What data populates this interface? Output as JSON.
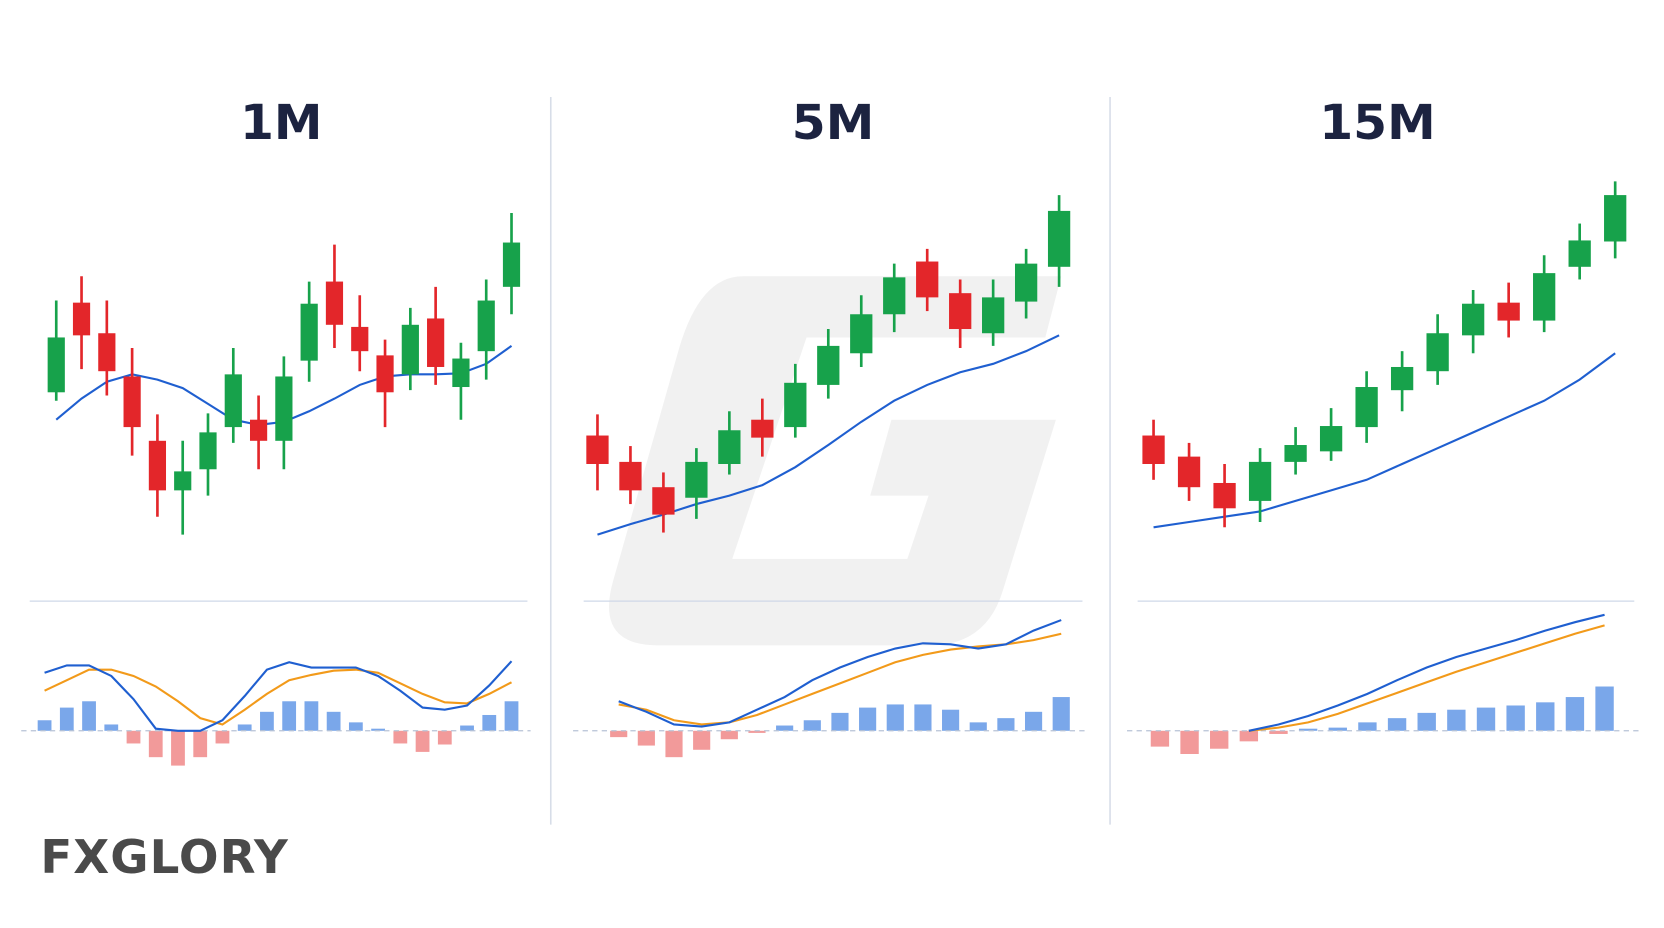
{
  "chart_data": [
    {
      "type": "candlestick",
      "title": "1M",
      "open": [
        148,
        233,
        204,
        163,
        102,
        55,
        75,
        115,
        122,
        102,
        178,
        253,
        210,
        183,
        165,
        218,
        153,
        187,
        248
      ],
      "close": [
        200,
        202,
        168,
        115,
        55,
        73,
        110,
        165,
        102,
        163,
        232,
        212,
        187,
        148,
        212,
        172,
        180,
        235,
        290
      ],
      "high": [
        235,
        258,
        235,
        190,
        127,
        102,
        128,
        190,
        145,
        182,
        253,
        288,
        240,
        198,
        228,
        248,
        195,
        255,
        318
      ],
      "low": [
        140,
        170,
        145,
        88,
        30,
        13,
        50,
        100,
        75,
        75,
        158,
        190,
        168,
        115,
        150,
        155,
        122,
        160,
        222
      ],
      "ylim": [
        0,
        350
      ],
      "up_color": "#17a24b",
      "down_color": "#e3262a",
      "moving_average": {
        "color": "#1f5fd0",
        "values": [
          122,
          142,
          158,
          165,
          160,
          152,
          137,
          122,
          117,
          120,
          130,
          142,
          155,
          163,
          165,
          165,
          166,
          175,
          192
        ]
      },
      "macd": {
        "ylim": [
          -50,
          125
        ],
        "positive_color": "#7aa7ea",
        "negative_color": "#f29a9a",
        "histogram": [
          10,
          22,
          28,
          6,
          -12,
          -25,
          -33,
          -25,
          -12,
          6,
          18,
          28,
          28,
          18,
          8,
          2,
          -12,
          -20,
          -13,
          5,
          15,
          28
        ],
        "macd_line": {
          "color": "#1f5fd0",
          "values": [
            55,
            62,
            62,
            52,
            30,
            2,
            0,
            0,
            10,
            33,
            58,
            65,
            60,
            60,
            60,
            52,
            38,
            22,
            20,
            24,
            43,
            66
          ]
        },
        "signal_line": {
          "color": "#f29a1a",
          "values": [
            38,
            48,
            58,
            58,
            52,
            42,
            28,
            12,
            6,
            20,
            35,
            48,
            53,
            57,
            58,
            55,
            45,
            35,
            27,
            26,
            35,
            46
          ]
        }
      }
    },
    {
      "type": "candlestick",
      "title": "5M",
      "open": [
        107,
        82,
        58,
        48,
        80,
        122,
        115,
        155,
        185,
        222,
        272,
        242,
        204,
        234,
        267
      ],
      "close": [
        80,
        55,
        32,
        82,
        112,
        105,
        157,
        192,
        222,
        257,
        238,
        208,
        238,
        270,
        320
      ],
      "high": [
        127,
        97,
        72,
        95,
        130,
        142,
        175,
        208,
        240,
        270,
        284,
        255,
        255,
        284,
        335
      ],
      "low": [
        55,
        42,
        15,
        28,
        70,
        87,
        105,
        142,
        172,
        205,
        225,
        190,
        192,
        218,
        248
      ],
      "ylim": [
        0,
        350
      ],
      "up_color": "#17a24b",
      "down_color": "#e3262a",
      "moving_average": {
        "color": "#1f5fd0",
        "values": [
          13,
          23,
          32,
          42,
          50,
          60,
          77,
          98,
          120,
          140,
          155,
          167,
          175,
          187,
          202
        ]
      },
      "macd": {
        "ylim": [
          -50,
          125
        ],
        "positive_color": "#7aa7ea",
        "negative_color": "#f29a9a",
        "histogram": [
          -6,
          -14,
          -25,
          -18,
          -8,
          -2,
          5,
          10,
          17,
          22,
          25,
          25,
          20,
          8,
          12,
          18,
          32
        ],
        "macd_line": {
          "color": "#1f5fd0",
          "values": [
            28,
            18,
            6,
            4,
            8,
            20,
            32,
            48,
            60,
            70,
            78,
            83,
            82,
            78,
            82,
            95,
            105
          ]
        },
        "signal_line": {
          "color": "#f29a1a",
          "values": [
            25,
            20,
            10,
            6,
            8,
            15,
            25,
            35,
            45,
            55,
            65,
            72,
            77,
            80,
            82,
            86,
            92
          ]
        }
      }
    },
    {
      "type": "candlestick",
      "title": "15M",
      "open": [
        107,
        87,
        62,
        45,
        82,
        92,
        115,
        150,
        168,
        202,
        233,
        216,
        267,
        291
      ],
      "close": [
        80,
        58,
        38,
        82,
        98,
        116,
        153,
        172,
        204,
        232,
        216,
        261,
        292,
        335
      ],
      "high": [
        122,
        100,
        80,
        95,
        115,
        133,
        168,
        187,
        222,
        245,
        252,
        278,
        308,
        348
      ],
      "low": [
        65,
        45,
        20,
        25,
        70,
        83,
        100,
        130,
        155,
        185,
        200,
        205,
        255,
        275
      ],
      "ylim": [
        0,
        350
      ],
      "up_color": "#17a24b",
      "down_color": "#e3262a",
      "moving_average": {
        "color": "#1f5fd0",
        "values": [
          20,
          25,
          30,
          35,
          45,
          55,
          65,
          80,
          95,
          110,
          125,
          140,
          160,
          185
        ]
      },
      "macd": {
        "ylim": [
          -50,
          125
        ],
        "positive_color": "#7aa7ea",
        "negative_color": "#f29a9a",
        "histogram": [
          -15,
          -22,
          -17,
          -10,
          -3,
          2,
          3,
          8,
          12,
          17,
          20,
          22,
          24,
          27,
          32,
          42
        ],
        "macd_line": {
          "color": "#1f5fd0",
          "values": [
            null,
            null,
            null,
            0,
            6,
            14,
            24,
            35,
            48,
            60,
            70,
            78,
            86,
            95,
            103,
            110
          ]
        },
        "signal_line": {
          "color": "#f29a1a",
          "values": [
            null,
            null,
            null,
            0,
            3,
            8,
            16,
            26,
            36,
            46,
            56,
            65,
            74,
            83,
            92,
            100
          ]
        }
      }
    }
  ],
  "logo": "FXGLORY"
}
